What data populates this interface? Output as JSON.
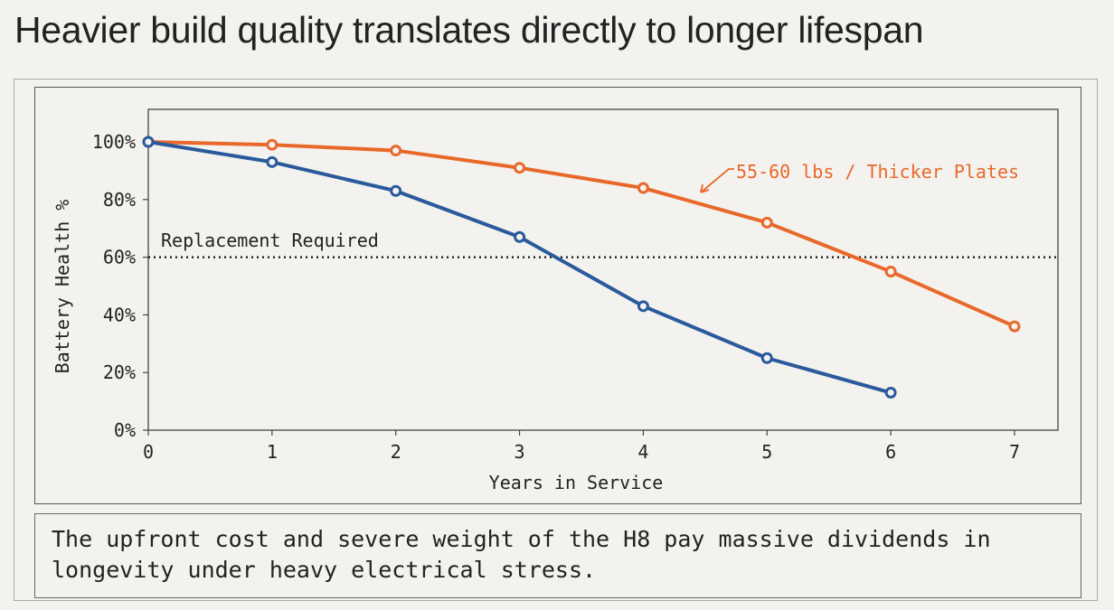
{
  "title": "Heavier build quality translates directly to longer lifespan",
  "caption": "The upfront cost and severe weight of the H8 pay massive dividends in longevity under heavy electrical stress.",
  "chart_data": {
    "type": "line",
    "title": "",
    "xlabel": "Years in Service",
    "ylabel": "Battery Health %",
    "xlim": [
      0,
      7
    ],
    "ylim": [
      0,
      100
    ],
    "x_ticks": [
      "0",
      "1",
      "2",
      "3",
      "4",
      "5",
      "6",
      "7"
    ],
    "y_ticks": [
      "0%",
      "20%",
      "40%",
      "60%",
      "80%",
      "100%"
    ],
    "grid": false,
    "series": [
      {
        "name": "55-60 lbs / Thicker Plates",
        "color": "#e8682a",
        "x": [
          0,
          1,
          2,
          3,
          4,
          5,
          6,
          7
        ],
        "y": [
          100,
          99,
          97,
          91,
          84,
          72,
          55,
          36
        ]
      },
      {
        "color": "#2a5a9c",
        "x": [
          0,
          1,
          2,
          3,
          4,
          5,
          6
        ],
        "y": [
          100,
          93,
          83,
          67,
          43,
          25,
          13
        ]
      }
    ],
    "reference_line": {
      "y": 60,
      "label": "Replacement Required",
      "style": "dotted"
    }
  }
}
